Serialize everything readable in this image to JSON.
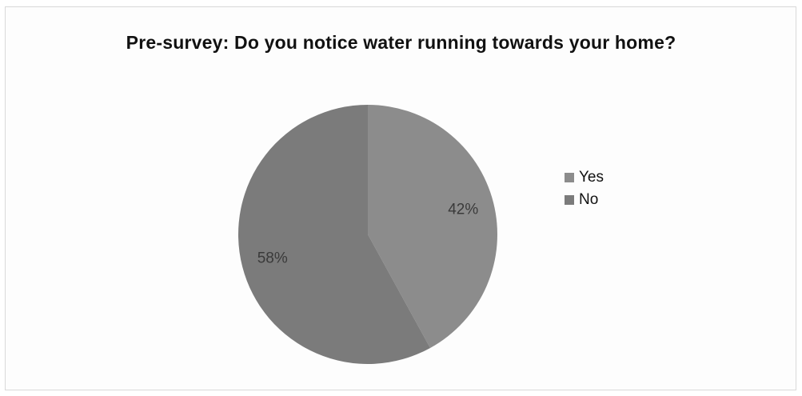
{
  "chart_data": {
    "type": "pie",
    "title": "Pre-survey: Do you notice water running towards your home?",
    "categories": [
      "Yes",
      "No"
    ],
    "values": [
      42,
      58
    ],
    "value_labels": [
      "42%",
      "58%"
    ],
    "colors": [
      "#8c8c8c",
      "#7b7b7b"
    ],
    "legend": "right"
  }
}
